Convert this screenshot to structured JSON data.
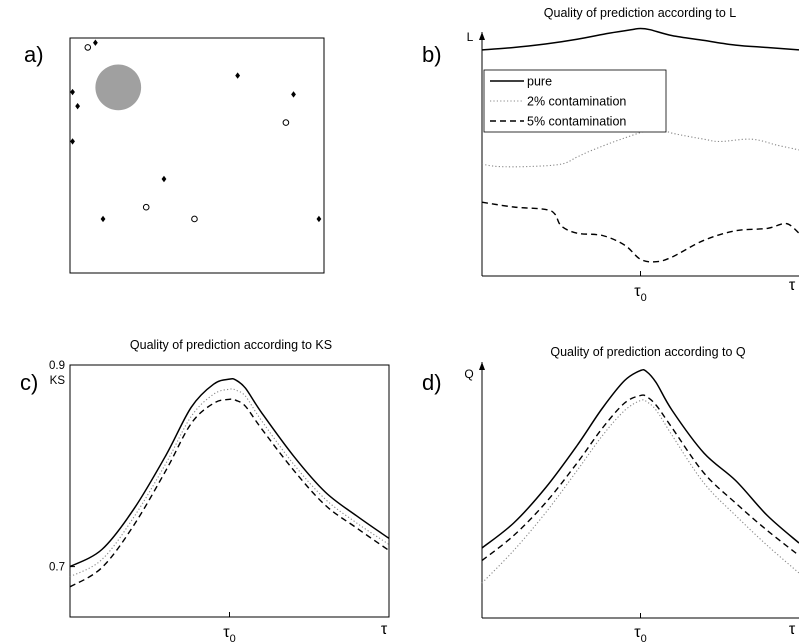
{
  "chart_data": [
    {
      "panel": "a)",
      "type": "scatter",
      "title": "",
      "xlim": [
        0,
        1
      ],
      "ylim": [
        0,
        1
      ],
      "region": {
        "shape": "disc",
        "center": [
          0.19,
          0.79
        ],
        "radius": 0.09,
        "color": "#a0a0a0"
      },
      "series": [
        {
          "marker": "diamond",
          "points": [
            [
              0.1,
              0.98
            ],
            [
              0.01,
              0.77
            ],
            [
              0.03,
              0.71
            ],
            [
              0.01,
              0.56
            ],
            [
              0.66,
              0.84
            ],
            [
              0.88,
              0.76
            ],
            [
              0.37,
              0.4
            ],
            [
              0.13,
              0.23
            ],
            [
              0.98,
              0.23
            ]
          ]
        },
        {
          "marker": "open-circle",
          "points": [
            [
              0.07,
              0.96
            ],
            [
              0.85,
              0.64
            ],
            [
              0.3,
              0.28
            ],
            [
              0.49,
              0.23
            ]
          ]
        }
      ]
    },
    {
      "panel": "b)",
      "type": "line",
      "title": "Quality of prediction according to L",
      "ylabel": "L",
      "xlabel": "τ",
      "x_ticks": [
        {
          "x": 0.5,
          "base": "τ",
          "sub": "0"
        }
      ],
      "xlim": [
        0,
        1
      ],
      "ylim": [
        0,
        1
      ],
      "legend": {
        "position": "top-left",
        "entries": [
          "pure",
          "2% contamination",
          "5% contamination"
        ]
      },
      "series": [
        {
          "name": "pure",
          "dash": "solid",
          "x": [
            0,
            0.1,
            0.2,
            0.3,
            0.4,
            0.47,
            0.5,
            0.53,
            0.6,
            0.7,
            0.8,
            0.9,
            1
          ],
          "y": [
            0.95,
            0.96,
            0.975,
            0.995,
            1.02,
            1.035,
            1.04,
            1.035,
            1.01,
            0.99,
            0.97,
            0.96,
            0.95
          ]
        },
        {
          "name": "2% contamination",
          "dash": "dotted",
          "x": [
            0,
            0.05,
            0.15,
            0.25,
            0.3,
            0.35,
            0.45,
            0.55,
            0.6,
            0.7,
            0.75,
            0.85,
            0.93,
            1
          ],
          "y": [
            0.47,
            0.46,
            0.46,
            0.47,
            0.5,
            0.53,
            0.58,
            0.62,
            0.6,
            0.575,
            0.565,
            0.575,
            0.55,
            0.53
          ]
        },
        {
          "name": "5% contamination",
          "dash": "dashed",
          "x": [
            0,
            0.1,
            0.2,
            0.23,
            0.25,
            0.3,
            0.38,
            0.45,
            0.5,
            0.55,
            0.6,
            0.7,
            0.8,
            0.9,
            0.96,
            1
          ],
          "y": [
            0.31,
            0.29,
            0.28,
            0.26,
            0.21,
            0.18,
            0.17,
            0.13,
            0.07,
            0.06,
            0.08,
            0.15,
            0.19,
            0.2,
            0.22,
            0.18
          ]
        }
      ]
    },
    {
      "panel": "c)",
      "type": "line",
      "title": "Quality of prediction according to KS",
      "ylabel": "KS",
      "xlabel": "τ",
      "x_ticks": [
        {
          "x": 0.5,
          "base": "τ",
          "sub": "0"
        }
      ],
      "y_ticks": [
        {
          "y": 0.7,
          "label": "0.7"
        },
        {
          "y": 0.9,
          "label": "0.9"
        }
      ],
      "xlim": [
        0,
        1
      ],
      "ylim": [
        0.65,
        0.9
      ],
      "series": [
        {
          "name": "pure",
          "dash": "solid",
          "x": [
            0,
            0.1,
            0.2,
            0.3,
            0.38,
            0.45,
            0.5,
            0.52,
            0.55,
            0.6,
            0.7,
            0.8,
            0.9,
            1
          ],
          "y": [
            0.7,
            0.717,
            0.757,
            0.81,
            0.858,
            0.881,
            0.886,
            0.885,
            0.877,
            0.853,
            0.81,
            0.774,
            0.75,
            0.728
          ]
        },
        {
          "name": "2% contamination",
          "dash": "dotted",
          "x": [
            0,
            0.1,
            0.2,
            0.3,
            0.38,
            0.45,
            0.5,
            0.52,
            0.55,
            0.6,
            0.7,
            0.8,
            0.9,
            1
          ],
          "y": [
            0.69,
            0.707,
            0.749,
            0.802,
            0.849,
            0.871,
            0.876,
            0.875,
            0.869,
            0.845,
            0.802,
            0.767,
            0.743,
            0.722
          ]
        },
        {
          "name": "5% contamination",
          "dash": "dashed",
          "x": [
            0,
            0.1,
            0.2,
            0.3,
            0.38,
            0.45,
            0.5,
            0.52,
            0.55,
            0.6,
            0.7,
            0.8,
            0.9,
            1
          ],
          "y": [
            0.68,
            0.699,
            0.741,
            0.795,
            0.842,
            0.862,
            0.866,
            0.865,
            0.859,
            0.837,
            0.796,
            0.761,
            0.738,
            0.716
          ]
        }
      ]
    },
    {
      "panel": "d)",
      "type": "line",
      "title": "Quality of prediction according to Q",
      "ylabel": "Q",
      "xlabel": "τ",
      "x_ticks": [
        {
          "x": 0.5,
          "base": "τ",
          "sub": "0"
        }
      ],
      "xlim": [
        0,
        1
      ],
      "ylim": [
        0,
        1
      ],
      "series": [
        {
          "name": "pure",
          "dash": "solid",
          "x": [
            0,
            0.1,
            0.2,
            0.3,
            0.38,
            0.45,
            0.5,
            0.52,
            0.55,
            0.6,
            0.7,
            0.8,
            0.9,
            1
          ],
          "y": [
            0.28,
            0.38,
            0.52,
            0.69,
            0.84,
            0.95,
            0.99,
            0.985,
            0.94,
            0.83,
            0.66,
            0.55,
            0.41,
            0.3
          ]
        },
        {
          "name": "5% contamination",
          "dash": "dashed",
          "x": [
            0,
            0.1,
            0.2,
            0.3,
            0.38,
            0.45,
            0.5,
            0.52,
            0.55,
            0.6,
            0.7,
            0.8,
            0.9,
            1
          ],
          "y": [
            0.23,
            0.33,
            0.46,
            0.62,
            0.76,
            0.86,
            0.89,
            0.885,
            0.85,
            0.76,
            0.58,
            0.46,
            0.35,
            0.25
          ]
        },
        {
          "name": "2% contamination",
          "dash": "dotted",
          "x": [
            0,
            0.1,
            0.2,
            0.3,
            0.38,
            0.45,
            0.5,
            0.52,
            0.55,
            0.6,
            0.7,
            0.8,
            0.9,
            1
          ],
          "y": [
            0.14,
            0.27,
            0.42,
            0.59,
            0.73,
            0.83,
            0.87,
            0.865,
            0.83,
            0.73,
            0.54,
            0.41,
            0.29,
            0.18
          ]
        }
      ]
    }
  ]
}
